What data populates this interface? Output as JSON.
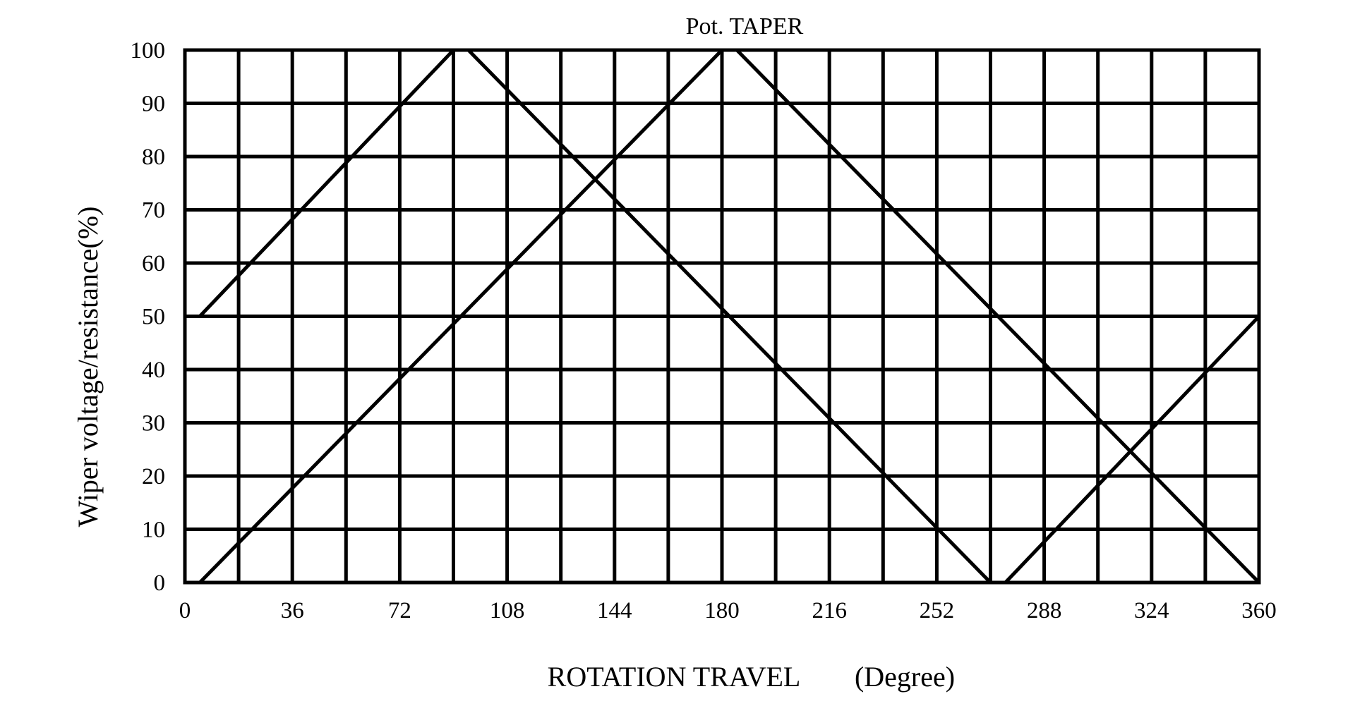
{
  "chart_data": {
    "type": "line",
    "title": "Pot. TAPER",
    "xlabel": "ROTATION TRAVEL",
    "xunit": "(Degree)",
    "ylabel": "Wiper voltage/resistance(%)",
    "xlim": [
      0,
      360
    ],
    "ylim": [
      0,
      100
    ],
    "xticks": [
      0,
      36,
      72,
      108,
      144,
      180,
      216,
      252,
      288,
      324,
      360
    ],
    "yticks": [
      0,
      10,
      20,
      30,
      40,
      50,
      60,
      70,
      80,
      90,
      100
    ],
    "x_grid_step": 18,
    "y_grid_step": 10,
    "grid": true,
    "legend": "none",
    "series": [
      {
        "x": [
          0,
          90,
          180,
          270,
          360
        ],
        "y": [
          50,
          100,
          50,
          0,
          50
        ]
      },
      {
        "x": [
          0,
          180,
          360
        ],
        "y": [
          0,
          100,
          0
        ]
      },
      {
        "x": [
          0,
          90,
          270,
          360
        ],
        "y": [
          0,
          50,
          50,
          0
        ]
      }
    ],
    "plotted_series": [
      {
        "x": [
          0,
          5,
          90,
          95,
          270,
          275,
          360
        ],
        "y": [
          50,
          50,
          100,
          100,
          0,
          0,
          50
        ]
      },
      {
        "x": [
          0,
          5,
          180,
          185,
          360
        ],
        "y": [
          0,
          0,
          100,
          100,
          0
        ]
      }
    ]
  }
}
